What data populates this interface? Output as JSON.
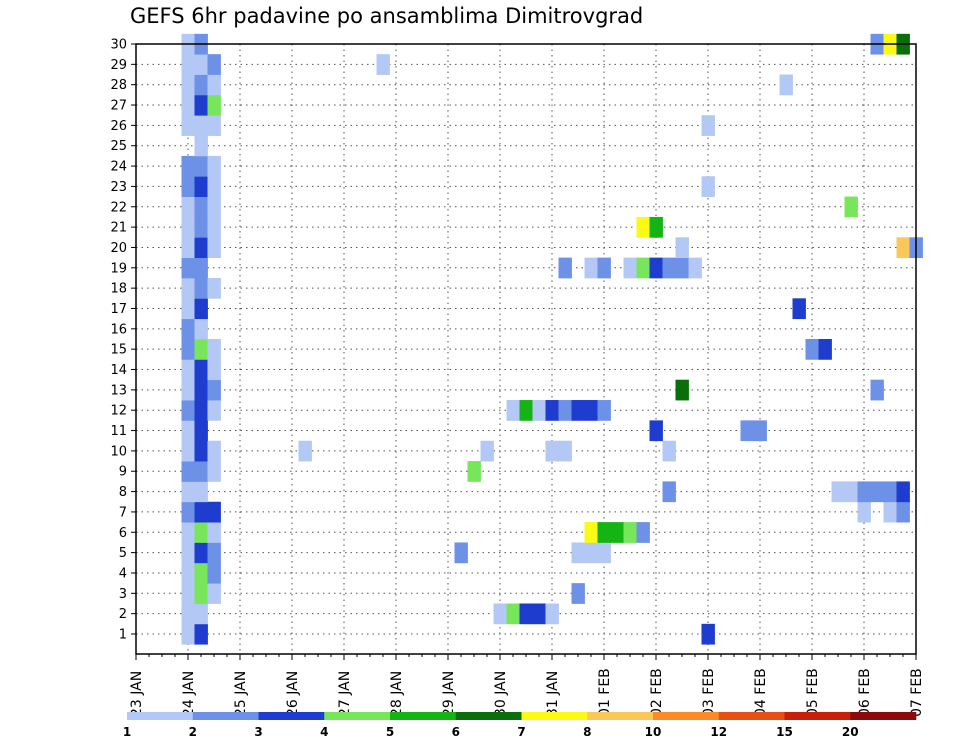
{
  "title": "GEFS 6hr padavine po ansamblima Dimitrovgrad",
  "chart_data": {
    "type": "heatmap",
    "title": "GEFS 6hr padavine po ansamblima Dimitrovgrad",
    "x_tick_labels": [
      "23 JAN",
      "24 JAN",
      "25 JAN",
      "26 JAN",
      "27 JAN",
      "28 JAN",
      "29 JAN",
      "30 JAN",
      "31 JAN",
      "01 FEB",
      "02 FEB",
      "03 FEB",
      "04 FEB",
      "05 FEB",
      "06 FEB",
      "07 FEB"
    ],
    "x_unit": "6-hour step (4 per day), step 0 = 23 JAN",
    "y_tick_labels": [
      "1",
      "2",
      "3",
      "4",
      "5",
      "6",
      "7",
      "8",
      "9",
      "10",
      "11",
      "12",
      "13",
      "14",
      "15",
      "16",
      "17",
      "18",
      "19",
      "20",
      "21",
      "22",
      "23",
      "24",
      "25",
      "26",
      "27",
      "28",
      "29",
      "30"
    ],
    "ylim": [
      1,
      30
    ],
    "grid": true,
    "colorbar": {
      "labels": [
        "1",
        "2",
        "3",
        "4",
        "5",
        "6",
        "7",
        "8",
        "10",
        "12",
        "15",
        "20"
      ],
      "colors": [
        "#b4c8f5",
        "#6e91e8",
        "#1e3ccd",
        "#78e65a",
        "#14b414",
        "#0a6e0a",
        "#fafa14",
        "#fac85a",
        "#fa8c28",
        "#e65014",
        "#c81e0a",
        "#8c0a0a"
      ]
    },
    "cells": [
      [
        1,
        4,
        1
      ],
      [
        1,
        5,
        3
      ],
      [
        1,
        44,
        3
      ],
      [
        2,
        4,
        1
      ],
      [
        2,
        5,
        1
      ],
      [
        2,
        28,
        1
      ],
      [
        2,
        29,
        4
      ],
      [
        2,
        30,
        3
      ],
      [
        2,
        31,
        3
      ],
      [
        2,
        32,
        1
      ],
      [
        3,
        4,
        1
      ],
      [
        3,
        5,
        4
      ],
      [
        3,
        6,
        1
      ],
      [
        3,
        34,
        2
      ],
      [
        4,
        4,
        1
      ],
      [
        4,
        5,
        4
      ],
      [
        4,
        6,
        2
      ],
      [
        5,
        4,
        1
      ],
      [
        5,
        5,
        3
      ],
      [
        5,
        6,
        2
      ],
      [
        5,
        25,
        2
      ],
      [
        5,
        34,
        1
      ],
      [
        5,
        35,
        1
      ],
      [
        5,
        36,
        1
      ],
      [
        6,
        4,
        1
      ],
      [
        6,
        5,
        4
      ],
      [
        6,
        6,
        1
      ],
      [
        6,
        35,
        7
      ],
      [
        6,
        36,
        5
      ],
      [
        6,
        37,
        5
      ],
      [
        6,
        38,
        4
      ],
      [
        6,
        39,
        2
      ],
      [
        7,
        4,
        2
      ],
      [
        7,
        5,
        3
      ],
      [
        7,
        6,
        3
      ],
      [
        7,
        56,
        1
      ],
      [
        7,
        58,
        1
      ],
      [
        7,
        59,
        2
      ],
      [
        8,
        4,
        1
      ],
      [
        8,
        5,
        1
      ],
      [
        8,
        41,
        2
      ],
      [
        8,
        54,
        1
      ],
      [
        8,
        55,
        1
      ],
      [
        8,
        56,
        2
      ],
      [
        8,
        57,
        2
      ],
      [
        8,
        58,
        2
      ],
      [
        8,
        59,
        3
      ],
      [
        9,
        4,
        2
      ],
      [
        9,
        5,
        2
      ],
      [
        9,
        6,
        1
      ],
      [
        9,
        26,
        4
      ],
      [
        10,
        4,
        1
      ],
      [
        10,
        5,
        3
      ],
      [
        10,
        6,
        1
      ],
      [
        10,
        13,
        1
      ],
      [
        10,
        27,
        1
      ],
      [
        10,
        32,
        1
      ],
      [
        10,
        33,
        1
      ],
      [
        10,
        41,
        1
      ],
      [
        11,
        4,
        1
      ],
      [
        11,
        5,
        3
      ],
      [
        11,
        40,
        3
      ],
      [
        11,
        47,
        2
      ],
      [
        11,
        48,
        2
      ],
      [
        12,
        4,
        2
      ],
      [
        12,
        5,
        3
      ],
      [
        12,
        6,
        1
      ],
      [
        12,
        29,
        1
      ],
      [
        12,
        30,
        5
      ],
      [
        12,
        31,
        1
      ],
      [
        12,
        32,
        3
      ],
      [
        12,
        33,
        2
      ],
      [
        12,
        34,
        3
      ],
      [
        12,
        35,
        3
      ],
      [
        12,
        36,
        2
      ],
      [
        13,
        4,
        1
      ],
      [
        13,
        5,
        3
      ],
      [
        13,
        6,
        2
      ],
      [
        13,
        42,
        6
      ],
      [
        13,
        57,
        2
      ],
      [
        14,
        4,
        1
      ],
      [
        14,
        5,
        3
      ],
      [
        14,
        6,
        1
      ],
      [
        15,
        4,
        2
      ],
      [
        15,
        5,
        4
      ],
      [
        15,
        6,
        1
      ],
      [
        15,
        52,
        2
      ],
      [
        15,
        53,
        3
      ],
      [
        16,
        4,
        2
      ],
      [
        16,
        5,
        1
      ],
      [
        17,
        4,
        1
      ],
      [
        17,
        5,
        3
      ],
      [
        17,
        51,
        3
      ],
      [
        18,
        4,
        1
      ],
      [
        18,
        5,
        2
      ],
      [
        18,
        6,
        1
      ],
      [
        19,
        4,
        2
      ],
      [
        19,
        5,
        2
      ],
      [
        19,
        33,
        2
      ],
      [
        19,
        35,
        1
      ],
      [
        19,
        36,
        2
      ],
      [
        19,
        38,
        1
      ],
      [
        19,
        39,
        4
      ],
      [
        19,
        40,
        3
      ],
      [
        19,
        41,
        2
      ],
      [
        19,
        42,
        2
      ],
      [
        19,
        43,
        1
      ],
      [
        20,
        4,
        1
      ],
      [
        20,
        5,
        3
      ],
      [
        20,
        6,
        1
      ],
      [
        20,
        42,
        1
      ],
      [
        20,
        59,
        8
      ],
      [
        20,
        60,
        2
      ],
      [
        21,
        4,
        1
      ],
      [
        21,
        5,
        2
      ],
      [
        21,
        6,
        1
      ],
      [
        21,
        39,
        7
      ],
      [
        21,
        40,
        5
      ],
      [
        22,
        4,
        1
      ],
      [
        22,
        5,
        2
      ],
      [
        22,
        6,
        1
      ],
      [
        22,
        55,
        4
      ],
      [
        23,
        4,
        2
      ],
      [
        23,
        5,
        3
      ],
      [
        23,
        6,
        1
      ],
      [
        23,
        44,
        1
      ],
      [
        24,
        4,
        2
      ],
      [
        24,
        5,
        2
      ],
      [
        24,
        6,
        1
      ],
      [
        25,
        5,
        1
      ],
      [
        26,
        4,
        1
      ],
      [
        26,
        5,
        1
      ],
      [
        26,
        6,
        1
      ],
      [
        26,
        44,
        1
      ],
      [
        27,
        4,
        1
      ],
      [
        27,
        5,
        3
      ],
      [
        27,
        6,
        4
      ],
      [
        28,
        4,
        1
      ],
      [
        28,
        5,
        2
      ],
      [
        28,
        6,
        1
      ],
      [
        28,
        50,
        1
      ],
      [
        29,
        4,
        1
      ],
      [
        29,
        5,
        1
      ],
      [
        29,
        6,
        2
      ],
      [
        29,
        19,
        1
      ],
      [
        30,
        4,
        1
      ],
      [
        30,
        5,
        2
      ],
      [
        30,
        57,
        2
      ],
      [
        30,
        58,
        7
      ],
      [
        30,
        59,
        6
      ]
    ]
  }
}
